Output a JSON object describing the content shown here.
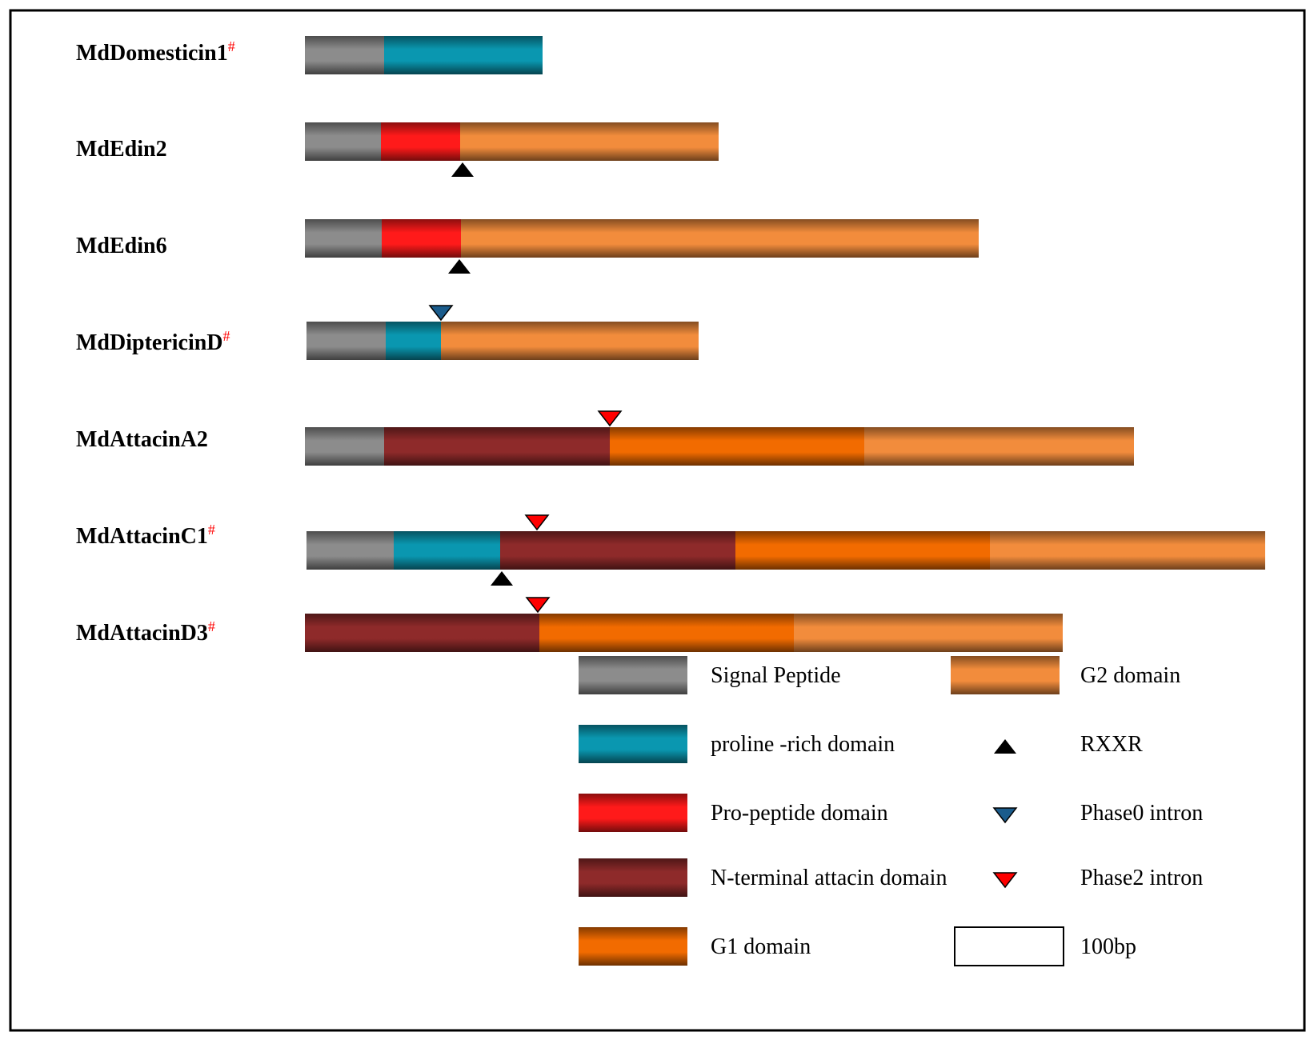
{
  "figure": {
    "colors": {
      "signal_peptide": "#8c8c8c",
      "proline_rich": "#0a97b0",
      "pro_peptide": "#ff1a1a",
      "n_terminal_attacin": "#8e2a2a",
      "g1": "#f26b00",
      "g2": "#f28c3c",
      "rxxr": "#000000",
      "phase0": "#1b5c8c",
      "phase2": "#ff0000",
      "frame": "#000000"
    },
    "genes": [
      {
        "name": "MdDomesticin1",
        "mark": "#",
        "domains": [
          {
            "type": "signal_peptide",
            "length_bp": 99
          },
          {
            "type": "proline_rich",
            "length_bp": 198
          }
        ],
        "markers": []
      },
      {
        "name": "MdEdin2",
        "mark": "",
        "domains": [
          {
            "type": "signal_peptide",
            "length_bp": 95
          },
          {
            "type": "pro_peptide",
            "length_bp": 99
          },
          {
            "type": "g2",
            "length_bp": 323
          }
        ],
        "markers": [
          {
            "type": "rxxr",
            "at_bp": 197
          }
        ]
      },
      {
        "name": "MdEdin6",
        "mark": "",
        "domains": [
          {
            "type": "signal_peptide",
            "length_bp": 96
          },
          {
            "type": "pro_peptide",
            "length_bp": 99
          },
          {
            "type": "g2",
            "length_bp": 324
          },
          {
            "type": "g2",
            "length_bp": 323
          }
        ],
        "markers": [
          {
            "type": "rxxr",
            "at_bp": 193
          }
        ]
      },
      {
        "name": "MdDiptericinD",
        "mark": "#",
        "domains": [
          {
            "type": "signal_peptide",
            "length_bp": 99
          },
          {
            "type": "proline_rich",
            "length_bp": 69
          },
          {
            "type": "g2",
            "length_bp": 322
          }
        ],
        "markers": [
          {
            "type": "phase0",
            "at_bp": 168
          }
        ]
      },
      {
        "name": "MdAttacinA2",
        "mark": "",
        "domains": [
          {
            "type": "signal_peptide",
            "length_bp": 99
          },
          {
            "type": "n_terminal_attacin",
            "length_bp": 282
          },
          {
            "type": "g1",
            "length_bp": 318
          },
          {
            "type": "g2",
            "length_bp": 337
          }
        ],
        "markers": [
          {
            "type": "phase2",
            "at_bp": 381
          }
        ]
      },
      {
        "name": "MdAttacinC1",
        "mark": "#",
        "domains": [
          {
            "type": "signal_peptide",
            "length_bp": 109
          },
          {
            "type": "proline_rich",
            "length_bp": 133
          },
          {
            "type": "n_terminal_attacin",
            "length_bp": 294
          },
          {
            "type": "g1",
            "length_bp": 318
          },
          {
            "type": "g2",
            "length_bp": 344
          }
        ],
        "markers": [
          {
            "type": "phase2",
            "at_bp": 288
          },
          {
            "type": "rxxr",
            "at_bp": 244
          }
        ]
      },
      {
        "name": "MdAttacinD3",
        "mark": "#",
        "domains": [
          {
            "type": "n_terminal_attacin",
            "length_bp": 293
          },
          {
            "type": "g1",
            "length_bp": 318
          },
          {
            "type": "g2",
            "length_bp": 336
          }
        ],
        "markers": [
          {
            "type": "phase2",
            "at_bp": 291
          }
        ]
      }
    ],
    "legend": [
      {
        "kind": "bar",
        "type": "signal_peptide",
        "label": "Signal Peptide"
      },
      {
        "kind": "bar",
        "type": "g2",
        "label": "G2 domain"
      },
      {
        "kind": "bar",
        "type": "proline_rich",
        "label": "proline -rich domain"
      },
      {
        "kind": "triangle-up",
        "type": "rxxr",
        "label": "RXXR"
      },
      {
        "kind": "bar",
        "type": "pro_peptide",
        "label": "Pro-peptide domain"
      },
      {
        "kind": "triangle-down",
        "type": "phase0",
        "label": "Phase0 intron"
      },
      {
        "kind": "bar",
        "type": "n_terminal_attacin",
        "label": "N-terminal attacin domain"
      },
      {
        "kind": "triangle-down",
        "type": "phase2",
        "label": "Phase2 intron"
      },
      {
        "kind": "bar",
        "type": "g1",
        "label": "G1 domain"
      },
      {
        "kind": "scale",
        "type": "scale",
        "label": "100bp",
        "length_bp": 100
      }
    ]
  }
}
